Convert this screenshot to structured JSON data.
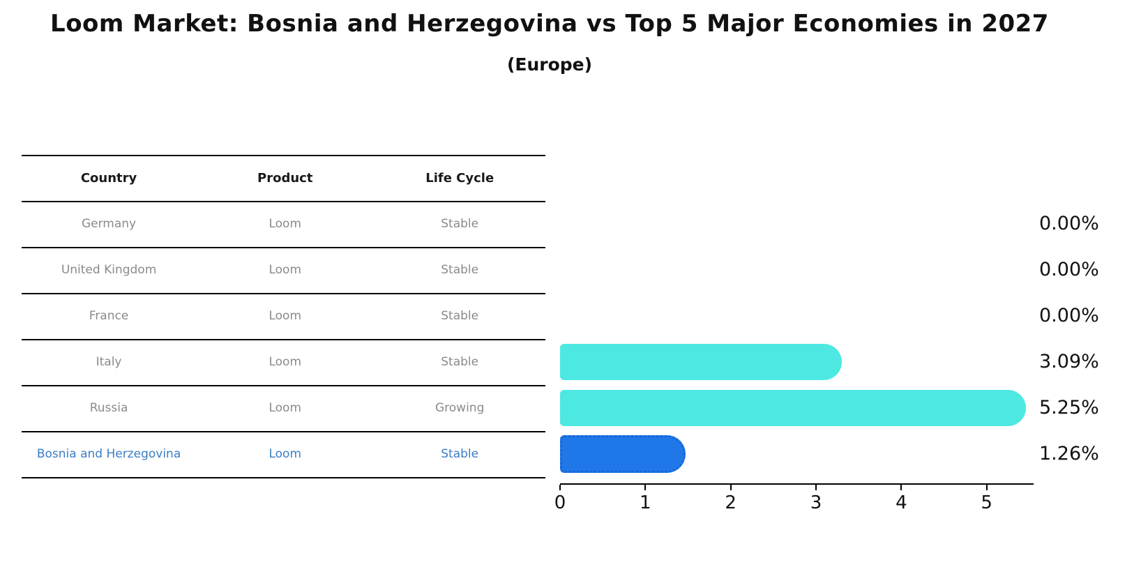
{
  "chart_data": {
    "type": "bar",
    "orientation": "horizontal",
    "title": "Loom Market: Bosnia and Herzegovina vs Top 5 Major Economies in 2027",
    "subtitle": "(Europe)",
    "categories": [
      "Germany",
      "United Kingdom",
      "France",
      "Italy",
      "Russia",
      "Bosnia and Herzegovina"
    ],
    "values": [
      0.0,
      0.0,
      0.0,
      3.09,
      5.25,
      1.26
    ],
    "value_labels": [
      "0.00%",
      "0.00%",
      "0.00%",
      "3.09%",
      "5.25%",
      "1.26%"
    ],
    "xlabel": "",
    "ylabel": "",
    "xlim": [
      0,
      5.55
    ],
    "xticks": [
      0,
      1,
      2,
      3,
      4,
      5
    ],
    "grid": false,
    "legend": null,
    "bar_color": "#4de8e2",
    "highlight_color": "#2078e8",
    "highlight_border_color": "#1565d8",
    "highlight_index": 5
  },
  "table": {
    "headers": [
      "Country",
      "Product",
      "Life Cycle"
    ],
    "rows": [
      {
        "country": "Germany",
        "product": "Loom",
        "life_cycle": "Stable"
      },
      {
        "country": "United Kingdom",
        "product": "Loom",
        "life_cycle": "Stable"
      },
      {
        "country": "France",
        "product": "Loom",
        "life_cycle": "Stable"
      },
      {
        "country": "Italy",
        "product": "Loom",
        "life_cycle": "Stable"
      },
      {
        "country": "Russia",
        "product": "Loom",
        "life_cycle": "Growing"
      },
      {
        "country": "Bosnia and Herzegovina",
        "product": "Loom",
        "life_cycle": "Stable"
      }
    ],
    "highlight_row_color": "#3a7dc5",
    "text_color": "#8a8a8a"
  }
}
